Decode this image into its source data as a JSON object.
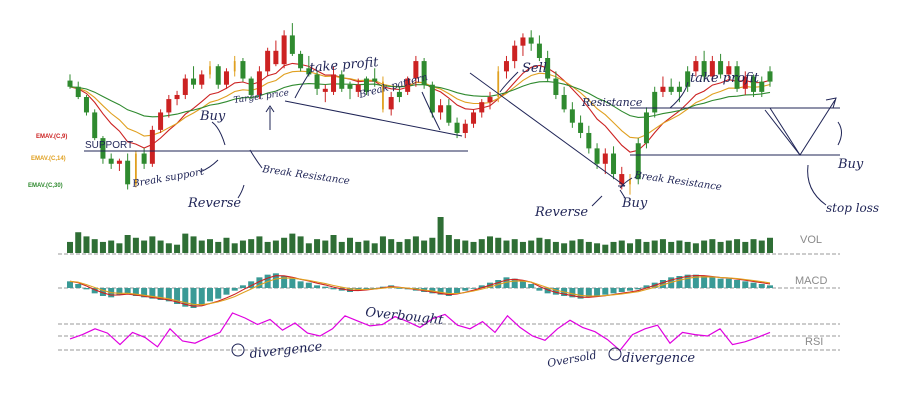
{
  "chart_data": {
    "type": "candlestick",
    "title": "",
    "candles": [
      {
        "o": 126,
        "h": 132,
        "l": 118,
        "c": 120,
        "t": "g"
      },
      {
        "o": 120,
        "h": 125,
        "l": 108,
        "c": 110,
        "t": "g"
      },
      {
        "o": 110,
        "h": 112,
        "l": 92,
        "c": 95,
        "t": "g"
      },
      {
        "o": 95,
        "h": 98,
        "l": 68,
        "c": 70,
        "t": "g"
      },
      {
        "o": 70,
        "h": 72,
        "l": 45,
        "c": 50,
        "t": "g"
      },
      {
        "o": 50,
        "h": 55,
        "l": 40,
        "c": 45,
        "t": "g"
      },
      {
        "o": 45,
        "h": 50,
        "l": 38,
        "c": 48,
        "t": "r"
      },
      {
        "o": 48,
        "h": 55,
        "l": 20,
        "c": 25,
        "t": "g"
      },
      {
        "o": 25,
        "h": 58,
        "l": 22,
        "c": 55,
        "t": "y"
      },
      {
        "o": 55,
        "h": 60,
        "l": 40,
        "c": 45,
        "t": "g"
      },
      {
        "o": 45,
        "h": 82,
        "l": 42,
        "c": 78,
        "t": "r"
      },
      {
        "o": 78,
        "h": 98,
        "l": 75,
        "c": 95,
        "t": "r"
      },
      {
        "o": 95,
        "h": 112,
        "l": 90,
        "c": 108,
        "t": "r"
      },
      {
        "o": 108,
        "h": 116,
        "l": 102,
        "c": 112,
        "t": "r"
      },
      {
        "o": 112,
        "h": 132,
        "l": 108,
        "c": 128,
        "t": "r"
      },
      {
        "o": 128,
        "h": 140,
        "l": 118,
        "c": 122,
        "t": "g"
      },
      {
        "o": 122,
        "h": 136,
        "l": 118,
        "c": 132,
        "t": "r"
      },
      {
        "o": 132,
        "h": 145,
        "l": 128,
        "c": 140,
        "t": "y"
      },
      {
        "o": 140,
        "h": 142,
        "l": 118,
        "c": 122,
        "t": "g"
      },
      {
        "o": 122,
        "h": 138,
        "l": 118,
        "c": 135,
        "t": "r"
      },
      {
        "o": 135,
        "h": 150,
        "l": 130,
        "c": 145,
        "t": "y"
      },
      {
        "o": 145,
        "h": 148,
        "l": 125,
        "c": 128,
        "t": "g"
      },
      {
        "o": 128,
        "h": 130,
        "l": 108,
        "c": 112,
        "t": "g"
      },
      {
        "o": 112,
        "h": 140,
        "l": 108,
        "c": 135,
        "t": "r"
      },
      {
        "o": 135,
        "h": 158,
        "l": 130,
        "c": 155,
        "t": "r"
      },
      {
        "o": 155,
        "h": 165,
        "l": 140,
        "c": 142,
        "t": "r"
      },
      {
        "o": 142,
        "h": 175,
        "l": 138,
        "c": 170,
        "t": "r"
      },
      {
        "o": 170,
        "h": 182,
        "l": 150,
        "c": 152,
        "t": "g"
      },
      {
        "o": 152,
        "h": 155,
        "l": 135,
        "c": 138,
        "t": "g"
      },
      {
        "o": 138,
        "h": 150,
        "l": 130,
        "c": 132,
        "t": "g"
      },
      {
        "o": 132,
        "h": 135,
        "l": 112,
        "c": 118,
        "t": "g"
      },
      {
        "o": 118,
        "h": 122,
        "l": 105,
        "c": 115,
        "t": "r"
      },
      {
        "o": 115,
        "h": 140,
        "l": 112,
        "c": 132,
        "t": "r"
      },
      {
        "o": 132,
        "h": 136,
        "l": 115,
        "c": 118,
        "t": "g"
      },
      {
        "o": 118,
        "h": 125,
        "l": 108,
        "c": 122,
        "t": "g"
      },
      {
        "o": 122,
        "h": 128,
        "l": 110,
        "c": 115,
        "t": "r"
      },
      {
        "o": 115,
        "h": 130,
        "l": 112,
        "c": 128,
        "t": "g"
      },
      {
        "o": 128,
        "h": 138,
        "l": 120,
        "c": 125,
        "t": "g"
      },
      {
        "o": 125,
        "h": 130,
        "l": 95,
        "c": 98,
        "t": "y"
      },
      {
        "o": 98,
        "h": 115,
        "l": 92,
        "c": 110,
        "t": "r"
      },
      {
        "o": 110,
        "h": 120,
        "l": 105,
        "c": 115,
        "t": "g"
      },
      {
        "o": 115,
        "h": 130,
        "l": 112,
        "c": 128,
        "t": "r"
      },
      {
        "o": 128,
        "h": 150,
        "l": 120,
        "c": 145,
        "t": "r"
      },
      {
        "o": 145,
        "h": 148,
        "l": 118,
        "c": 122,
        "t": "g"
      },
      {
        "o": 122,
        "h": 125,
        "l": 90,
        "c": 95,
        "t": "g"
      },
      {
        "o": 95,
        "h": 108,
        "l": 88,
        "c": 102,
        "t": "r"
      },
      {
        "o": 102,
        "h": 108,
        "l": 82,
        "c": 85,
        "t": "g"
      },
      {
        "o": 85,
        "h": 90,
        "l": 70,
        "c": 75,
        "t": "g"
      },
      {
        "o": 75,
        "h": 88,
        "l": 70,
        "c": 84,
        "t": "r"
      },
      {
        "o": 84,
        "h": 98,
        "l": 80,
        "c": 95,
        "t": "r"
      },
      {
        "o": 95,
        "h": 108,
        "l": 90,
        "c": 105,
        "t": "r"
      },
      {
        "o": 105,
        "h": 115,
        "l": 98,
        "c": 110,
        "t": "r"
      },
      {
        "o": 110,
        "h": 140,
        "l": 105,
        "c": 135,
        "t": "y"
      },
      {
        "o": 135,
        "h": 150,
        "l": 128,
        "c": 145,
        "t": "r"
      },
      {
        "o": 145,
        "h": 165,
        "l": 138,
        "c": 160,
        "t": "r"
      },
      {
        "o": 160,
        "h": 172,
        "l": 150,
        "c": 168,
        "t": "r"
      },
      {
        "o": 168,
        "h": 175,
        "l": 155,
        "c": 162,
        "t": "g"
      },
      {
        "o": 162,
        "h": 170,
        "l": 145,
        "c": 148,
        "t": "g"
      },
      {
        "o": 148,
        "h": 155,
        "l": 125,
        "c": 128,
        "t": "g"
      },
      {
        "o": 128,
        "h": 135,
        "l": 108,
        "c": 112,
        "t": "g"
      },
      {
        "o": 112,
        "h": 120,
        "l": 95,
        "c": 98,
        "t": "g"
      },
      {
        "o": 98,
        "h": 105,
        "l": 80,
        "c": 85,
        "t": "g"
      },
      {
        "o": 85,
        "h": 92,
        "l": 70,
        "c": 75,
        "t": "g"
      },
      {
        "o": 75,
        "h": 82,
        "l": 55,
        "c": 60,
        "t": "g"
      },
      {
        "o": 60,
        "h": 65,
        "l": 40,
        "c": 45,
        "t": "g"
      },
      {
        "o": 45,
        "h": 60,
        "l": 35,
        "c": 55,
        "t": "r"
      },
      {
        "o": 55,
        "h": 62,
        "l": 30,
        "c": 35,
        "t": "g"
      },
      {
        "o": 35,
        "h": 42,
        "l": 20,
        "c": 25,
        "t": "r"
      },
      {
        "o": 25,
        "h": 35,
        "l": 15,
        "c": 30,
        "t": "y"
      },
      {
        "o": 30,
        "h": 70,
        "l": 25,
        "c": 65,
        "t": "g"
      },
      {
        "o": 65,
        "h": 100,
        "l": 60,
        "c": 95,
        "t": "g"
      },
      {
        "o": 95,
        "h": 120,
        "l": 90,
        "c": 115,
        "t": "g"
      },
      {
        "o": 115,
        "h": 130,
        "l": 110,
        "c": 120,
        "t": "r"
      },
      {
        "o": 120,
        "h": 128,
        "l": 112,
        "c": 115,
        "t": "g"
      },
      {
        "o": 115,
        "h": 125,
        "l": 105,
        "c": 120,
        "t": "g"
      },
      {
        "o": 120,
        "h": 140,
        "l": 115,
        "c": 135,
        "t": "g"
      },
      {
        "o": 135,
        "h": 150,
        "l": 130,
        "c": 145,
        "t": "r"
      },
      {
        "o": 145,
        "h": 155,
        "l": 125,
        "c": 130,
        "t": "g"
      },
      {
        "o": 130,
        "h": 150,
        "l": 125,
        "c": 145,
        "t": "r"
      },
      {
        "o": 145,
        "h": 152,
        "l": 128,
        "c": 132,
        "t": "g"
      },
      {
        "o": 132,
        "h": 145,
        "l": 128,
        "c": 140,
        "t": "r"
      },
      {
        "o": 140,
        "h": 145,
        "l": 115,
        "c": 118,
        "t": "g"
      },
      {
        "o": 118,
        "h": 135,
        "l": 112,
        "c": 130,
        "t": "r"
      },
      {
        "o": 130,
        "h": 132,
        "l": 110,
        "c": 115,
        "t": "g"
      },
      {
        "o": 115,
        "h": 130,
        "l": 110,
        "c": 125,
        "t": "g"
      },
      {
        "o": 125,
        "h": 140,
        "l": 120,
        "c": 135,
        "t": "g"
      }
    ],
    "ema_lines": [
      {
        "name": "EMAV.(C,9)",
        "color": "#cc2222",
        "period": 9
      },
      {
        "name": "EMAV.(C,14)",
        "color": "#e0a020",
        "period": 14
      },
      {
        "name": "EMAV.(C,30)",
        "color": "#2f8a2f",
        "period": 30
      }
    ],
    "volume": [
      8,
      15,
      12,
      10,
      8,
      9,
      7,
      13,
      11,
      9,
      12,
      9,
      7,
      6,
      14,
      12,
      9,
      10,
      8,
      11,
      7,
      9,
      10,
      12,
      8,
      9,
      11,
      14,
      12,
      7,
      10,
      9,
      13,
      8,
      11,
      8,
      9,
      7,
      12,
      10,
      8,
      10,
      12,
      9,
      11,
      26,
      13,
      10,
      9,
      8,
      10,
      12,
      11,
      9,
      10,
      8,
      9,
      11,
      10,
      8,
      7,
      9,
      10,
      8,
      7,
      6,
      8,
      9,
      7,
      10,
      8,
      9,
      10,
      8,
      9,
      8,
      7,
      9,
      10,
      8,
      9,
      10,
      8,
      10,
      9,
      11
    ],
    "macd": [
      5,
      3,
      -1,
      -4,
      -6,
      -7,
      -5,
      -4,
      -6,
      -7,
      -8,
      -9,
      -10,
      -12,
      -14,
      -15,
      -13,
      -10,
      -8,
      -5,
      -2,
      2,
      5,
      8,
      10,
      11,
      9,
      7,
      5,
      4,
      2,
      1,
      -1,
      -2,
      -3,
      -2,
      -1,
      0,
      1,
      2,
      0,
      -1,
      -2,
      -3,
      -4,
      -5,
      -6,
      -4,
      -2,
      0,
      2,
      4,
      6,
      8,
      7,
      5,
      3,
      -2,
      -4,
      -5,
      -6,
      -7,
      -8,
      -7,
      -6,
      -5,
      -4,
      -3,
      -2,
      -1,
      2,
      4,
      6,
      8,
      9,
      10,
      10,
      9,
      8,
      7,
      7,
      6,
      5,
      4,
      3,
      2
    ],
    "rsi": [
      46,
      52,
      60,
      54,
      38,
      55,
      48,
      35,
      60,
      43,
      40,
      48,
      55,
      82,
      75,
      66,
      73,
      58,
      68,
      54,
      50,
      60,
      78,
      71,
      64,
      66,
      77,
      70,
      62,
      74,
      80,
      65,
      60,
      70,
      55,
      78,
      62,
      50,
      44,
      60,
      72,
      62,
      56,
      45,
      30,
      52,
      60,
      65,
      40,
      55,
      52,
      50,
      60,
      38,
      42,
      48,
      55
    ],
    "annotations": {
      "ema_9": "EMAV.(C,9)",
      "ema_14": "EMAV.(C,14)",
      "ema_30": "EMAV.(C,30)",
      "support": "SUPPORT",
      "buy1": "Buy",
      "target_price": "Target price",
      "take_profit1": "take profit",
      "break_pattern": "Break pattern",
      "sell": "Sell",
      "take_profit2": "take profit",
      "resistance": "Resistance",
      "break_support": "Break support",
      "break_resistance1": "Break Resistance",
      "reverse1": "Reverse",
      "reverse2": "Reverse",
      "break_resistance2": "Break Resistance",
      "buy2": "Buy",
      "buy3": "Buy",
      "stop_loss": "stop loss",
      "overbought": "Overbought",
      "divergence1": "divergence",
      "oversold": "Oversold",
      "divergence2": "divergence"
    },
    "panel_labels": {
      "vol": "VOL",
      "macd": "MACD",
      "rsi": "RSI"
    },
    "colors": {
      "bull": "#2f8a2f",
      "bear": "#cc2222",
      "doji": "#e0a020",
      "volume": "#2f6e35",
      "macd_bar": "#3a9a96",
      "macd_line1": "#cc2222",
      "macd_line2": "#e0a020",
      "rsi": "#e000e0",
      "ink": "#1f2456",
      "dash": "#999999"
    }
  }
}
